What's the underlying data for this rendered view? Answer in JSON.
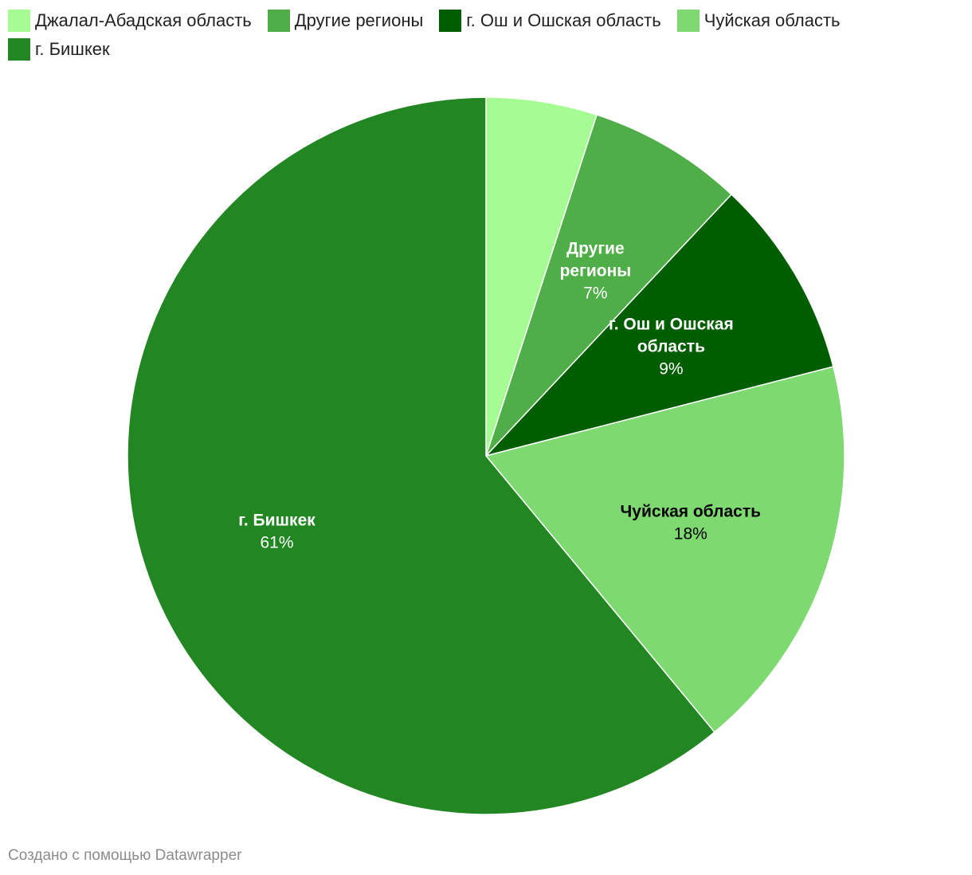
{
  "chart_data": {
    "type": "pie",
    "categories": [
      "Джалал-Абадская область",
      "Другие регионы",
      "г. Ош и Ошская область",
      "Чуйская область",
      "г. Бишкек"
    ],
    "values": [
      5,
      7,
      9,
      18,
      61
    ],
    "value_labels": [
      "",
      "7%",
      "9%",
      "18%",
      "61%"
    ],
    "colors": [
      "#a4fc93",
      "#4fae47",
      "#005e00",
      "#7dd970",
      "#228622"
    ],
    "label_colors": [
      "#000000",
      "#ffffff",
      "#ffffff",
      "#000000",
      "#ffffff"
    ],
    "show_label": [
      false,
      true,
      true,
      true,
      true
    ],
    "label_lines": [
      [
        "Джалал-Абадская область"
      ],
      [
        "Другие",
        "регионы"
      ],
      [
        "г. Ош и Ошская",
        "область"
      ],
      [
        "Чуйская область"
      ],
      [
        "г. Бишкек"
      ]
    ],
    "legend_placement": "top-left",
    "start_angle": "12 o'clock, clockwise"
  },
  "footer": {
    "credit": "Создано с помощью Datawrapper"
  }
}
